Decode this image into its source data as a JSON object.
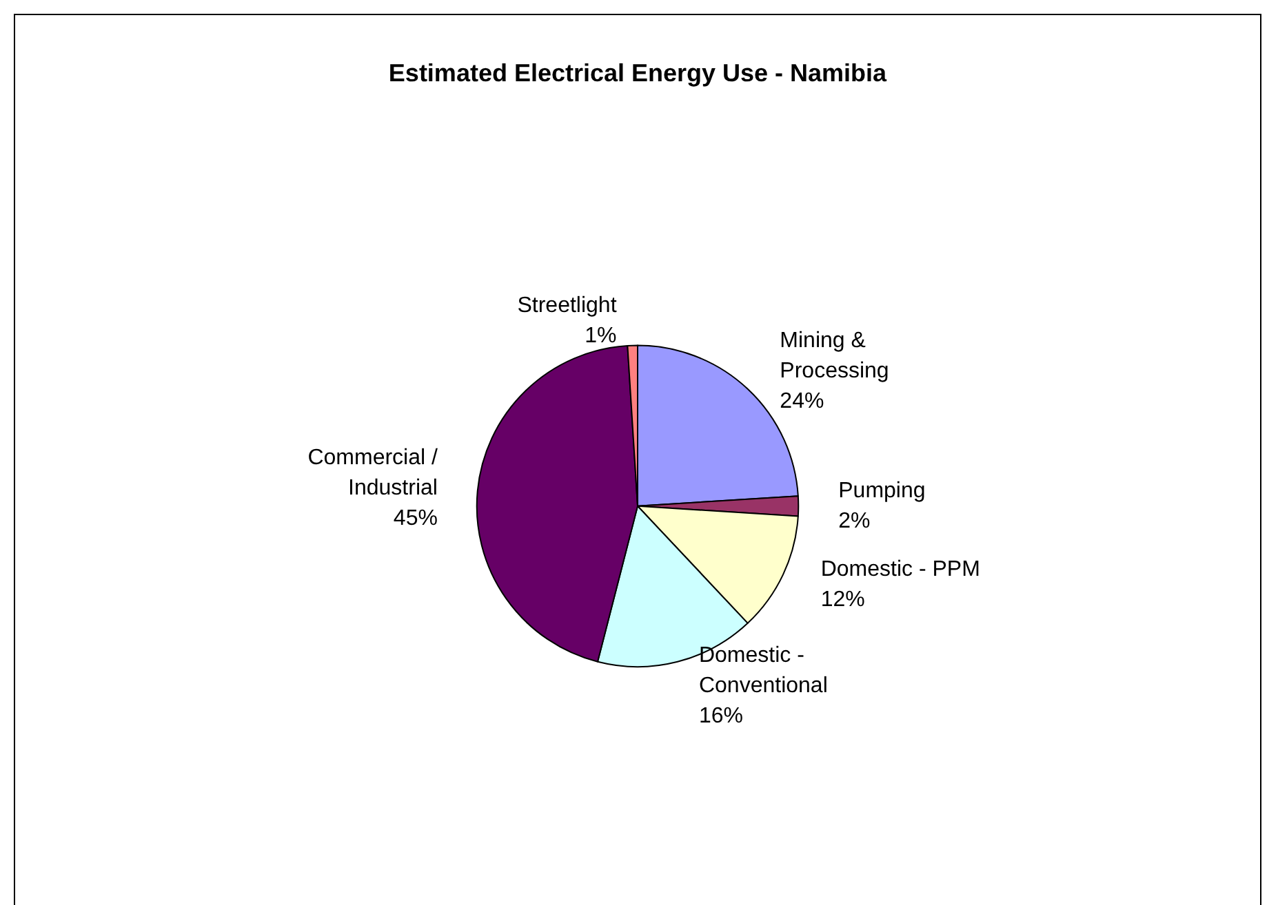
{
  "chart_data": {
    "type": "pie",
    "title": "Estimated Electrical Energy Use - Namibia",
    "categories": [
      "Mining &\nProcessing",
      "Pumping",
      "Domestic - PPM",
      "Domestic -\nConventional",
      "Commercial /\nIndustrial",
      "Streetlight"
    ],
    "values": [
      24,
      2,
      12,
      16,
      45,
      1
    ],
    "value_labels": [
      "24%",
      "2%",
      "12%",
      "16%",
      "45%",
      "1%"
    ],
    "colors": [
      "#9999ff",
      "#993366",
      "#ffffcc",
      "#ccffff",
      "#660066",
      "#ff8080"
    ],
    "legend": false
  }
}
